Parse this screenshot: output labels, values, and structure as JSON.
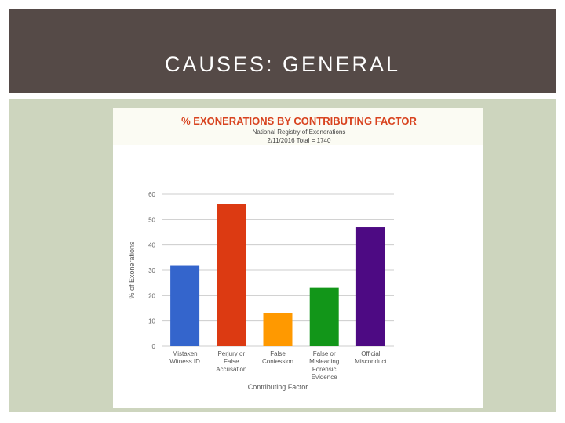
{
  "slide": {
    "title": "CAUSES: GENERAL"
  },
  "colors": {
    "header_bg": "#554a47",
    "content_bg": "#cdd5be",
    "chart_title": "#d8431f"
  },
  "chart_data": {
    "type": "bar",
    "title": "% EXONERATIONS BY CONTRIBUTING FACTOR",
    "subtitle_lines": [
      "National Registry of Exonerations",
      "2/11/2016 Total = 1740"
    ],
    "xlabel": "Contributing Factor",
    "ylabel": "% of Exonerations",
    "ylim": [
      0,
      60
    ],
    "yticks": [
      0,
      10,
      20,
      30,
      40,
      50,
      60
    ],
    "grid": true,
    "legend": "none",
    "categories": [
      [
        "Mistaken",
        "Witness ID"
      ],
      [
        "Perjury or",
        "False",
        "Accusation"
      ],
      [
        "False",
        "Confession"
      ],
      [
        "False or",
        "Misleading",
        "Forensic",
        "Evidence"
      ],
      [
        "Official",
        "Misconduct"
      ]
    ],
    "values": [
      32,
      56,
      13,
      23,
      47
    ],
    "bar_colors": [
      "#3465cc",
      "#dc3a12",
      "#ff9900",
      "#129619",
      "#4d0a83"
    ]
  }
}
